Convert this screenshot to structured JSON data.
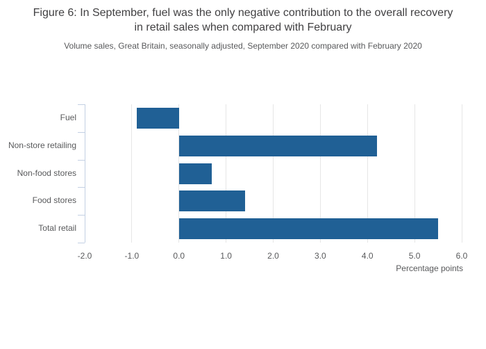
{
  "chart_data": {
    "type": "bar",
    "orientation": "horizontal",
    "title": "Figure 6: In September, fuel was the only negative contribution to the overall recovery in retail sales when compared with February",
    "subtitle": "Volume sales, Great Britain, seasonally adjusted, September 2020 compared with February 2020",
    "categories": [
      "Fuel",
      "Non-store retailing",
      "Non-food stores",
      "Food stores",
      "Total retail"
    ],
    "values": [
      -0.9,
      4.2,
      0.7,
      1.4,
      5.5
    ],
    "xlabel": "Percentage points",
    "xlim": [
      -2.0,
      6.0
    ],
    "xtick_values": [
      -2.0,
      -1.0,
      0.0,
      1.0,
      2.0,
      3.0,
      4.0,
      5.0,
      6.0
    ],
    "xtick_labels": [
      "-2.0",
      "-1.0",
      "0.0",
      "1.0",
      "2.0",
      "3.0",
      "4.0",
      "5.0",
      "6.0"
    ],
    "grid": "vertical-gridlines-on",
    "legend": "none",
    "colors": {
      "bar": "#206095",
      "gridline": "#e6e6e6",
      "axis_line": "#c3d0e3",
      "title_text": "#414042",
      "label_text": "#58595b",
      "background": "#ffffff"
    }
  }
}
